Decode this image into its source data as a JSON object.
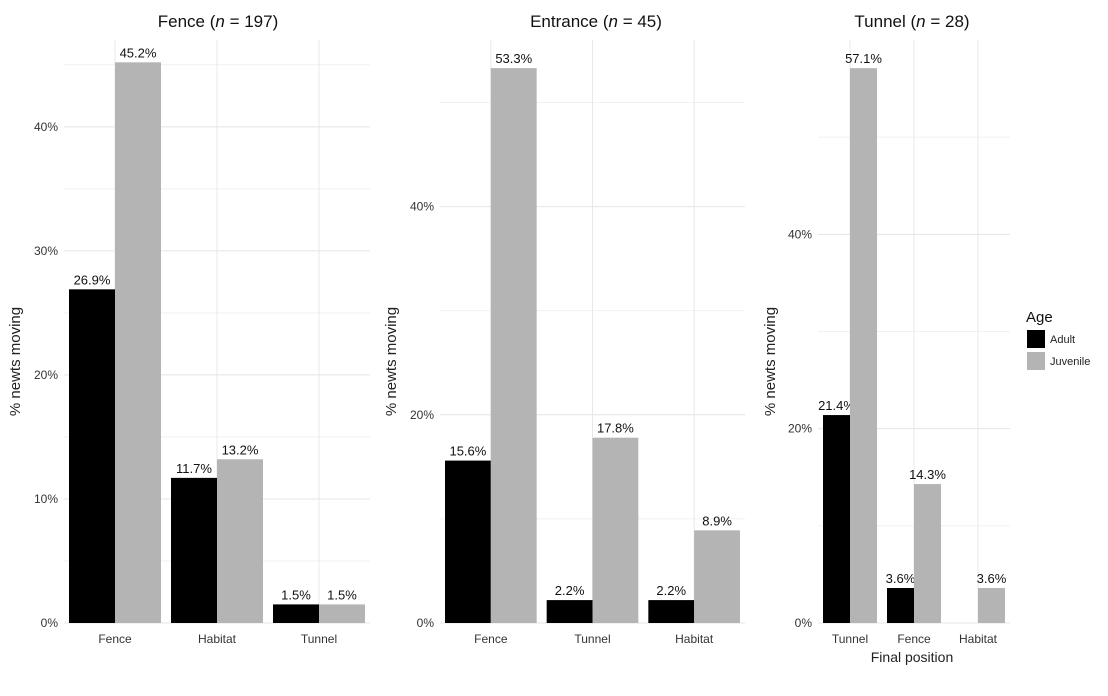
{
  "chart_data": {
    "type": "bar",
    "xlabel": "Final position",
    "legend": {
      "title": "Age",
      "placement": "right",
      "entries": [
        {
          "name": "Adult",
          "color": "#000000"
        },
        {
          "name": "Juvenile",
          "color": "#b4b4b4"
        }
      ]
    },
    "grid": true,
    "panels": [
      {
        "title_prefix": "Fence (",
        "title_n": "n",
        "title_suffix": " = 197)",
        "ylabel": "% newts moving",
        "ylim": [
          0,
          47
        ],
        "yticks": [
          0,
          10,
          20,
          30,
          40
        ],
        "ytick_labels": [
          "0%",
          "10%",
          "20%",
          "30%",
          "40%"
        ],
        "categories": [
          "Fence",
          "Habitat",
          "Tunnel"
        ],
        "series": [
          {
            "name": "Adult",
            "values": [
              26.9,
              11.7,
              1.5
            ],
            "labels": [
              "26.9%",
              "11.7%",
              "1.5%"
            ]
          },
          {
            "name": "Juvenile",
            "values": [
              45.2,
              13.2,
              1.5
            ],
            "labels": [
              "45.2%",
              "13.2%",
              "1.5%"
            ]
          }
        ]
      },
      {
        "title_prefix": "Entrance (",
        "title_n": "n",
        "title_suffix": " = 45)",
        "ylabel": "% newts moving",
        "ylim": [
          0,
          56
        ],
        "yticks": [
          0,
          20,
          40
        ],
        "ytick_labels": [
          "0%",
          "20%",
          "40%"
        ],
        "categories": [
          "Fence",
          "Tunnel",
          "Habitat"
        ],
        "series": [
          {
            "name": "Adult",
            "values": [
              15.6,
              2.2,
              2.2
            ],
            "labels": [
              "15.6%",
              "2.2%",
              "2.2%"
            ]
          },
          {
            "name": "Juvenile",
            "values": [
              53.3,
              17.8,
              8.9
            ],
            "labels": [
              "53.3%",
              "17.8%",
              "8.9%"
            ]
          }
        ]
      },
      {
        "title_prefix": "Tunnel (",
        "title_n": "n",
        "title_suffix": " = 28)",
        "ylabel": "% newts moving",
        "ylim": [
          0,
          60
        ],
        "yticks": [
          0,
          20,
          40
        ],
        "ytick_labels": [
          "0%",
          "20%",
          "40%"
        ],
        "categories": [
          "Tunnel",
          "Fence",
          "Habitat"
        ],
        "series": [
          {
            "name": "Adult",
            "values": [
              21.4,
              3.6,
              0
            ],
            "labels": [
              "21.4%",
              "3.6%",
              ""
            ]
          },
          {
            "name": "Juvenile",
            "values": [
              57.1,
              14.3,
              3.6
            ],
            "labels": [
              "57.1%",
              "14.3%",
              "3.6%"
            ]
          }
        ]
      }
    ]
  }
}
